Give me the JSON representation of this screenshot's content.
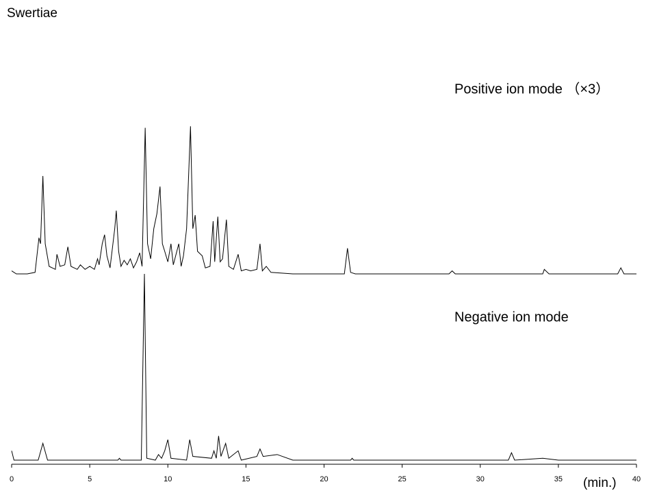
{
  "chart_data": [
    {
      "type": "line",
      "title": "Swertiae",
      "annotation": "Positive ion mode （×3）",
      "color": "#000000",
      "xlim": [
        0,
        40
      ],
      "ylim": [
        0,
        100
      ],
      "x": [
        0,
        0.3,
        1,
        1.5,
        1.75,
        1.85,
        2,
        2.15,
        2.4,
        2.8,
        2.9,
        3.1,
        3.4,
        3.6,
        3.8,
        4.2,
        4.4,
        4.7,
        5,
        5.3,
        5.5,
        5.6,
        5.8,
        5.95,
        6.1,
        6.3,
        6.6,
        6.7,
        6.85,
        7,
        7.2,
        7.4,
        7.6,
        7.8,
        8,
        8.2,
        8.35,
        8.55,
        8.7,
        8.9,
        9.1,
        9.3,
        9.5,
        9.65,
        9.8,
        10,
        10.2,
        10.35,
        10.5,
        10.7,
        10.85,
        11,
        11.2,
        11.45,
        11.6,
        11.75,
        11.9,
        12.2,
        12.4,
        12.7,
        12.9,
        13,
        13.2,
        13.35,
        13.5,
        13.75,
        13.9,
        14.2,
        14.5,
        14.7,
        15,
        15.3,
        15.7,
        15.9,
        16.05,
        16.3,
        16.6,
        18,
        20,
        21.3,
        21.5,
        21.7,
        22,
        28,
        28.2,
        28.4,
        34,
        34.1,
        34.4,
        38.8,
        39,
        39.2,
        40
      ],
      "values": [
        2,
        0,
        0,
        1,
        24,
        20,
        65,
        20,
        5,
        3,
        13,
        5,
        6,
        18,
        5,
        3,
        6,
        3,
        5,
        3,
        10,
        6,
        20,
        26,
        12,
        4,
        30,
        42,
        15,
        5,
        9,
        6,
        10,
        4,
        8,
        14,
        5,
        97,
        20,
        10,
        30,
        40,
        58,
        20,
        15,
        8,
        20,
        6,
        12,
        20,
        5,
        12,
        30,
        98,
        30,
        39,
        15,
        12,
        4,
        5,
        35,
        8,
        38,
        8,
        10,
        36,
        5,
        3,
        13,
        2,
        3,
        2,
        3,
        20,
        2,
        5,
        1,
        0,
        0,
        0,
        17,
        1,
        0,
        0,
        2,
        0,
        0,
        3,
        0,
        0,
        4,
        0,
        0
      ]
    },
    {
      "type": "line",
      "annotation": "Negative ion mode",
      "color": "#000000",
      "xlim": [
        0,
        40
      ],
      "ylim": [
        0,
        100
      ],
      "xticks": [
        0,
        5,
        10,
        15,
        20,
        25,
        30,
        35,
        40
      ],
      "x_label": "(min.)",
      "x": [
        0,
        0.15,
        1.7,
        2,
        2.3,
        6.8,
        6.9,
        7,
        8.3,
        8.5,
        8.65,
        9.2,
        9.4,
        9.6,
        9.8,
        10,
        10.2,
        11.2,
        11.4,
        11.6,
        12.8,
        12.95,
        13.1,
        13.25,
        13.4,
        13.7,
        13.9,
        14.5,
        14.7,
        15.7,
        15.9,
        16.1,
        17,
        18,
        21.7,
        21.8,
        21.9,
        31.8,
        32,
        32.2,
        34,
        35,
        40
      ],
      "values": [
        5,
        0,
        0,
        9,
        0,
        0,
        1,
        0,
        0,
        100,
        1,
        0,
        3,
        1,
        5,
        11,
        1,
        0,
        11,
        2,
        1,
        5,
        1,
        13,
        2,
        9,
        1,
        5,
        0,
        2,
        6,
        2,
        3,
        0,
        0,
        1,
        0,
        0,
        4,
        0,
        1,
        0,
        0
      ]
    }
  ]
}
